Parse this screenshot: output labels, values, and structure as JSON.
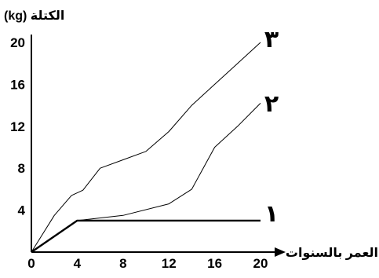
{
  "chart_data": {
    "type": "line",
    "title": "",
    "ylabel": "(kg) الكتلة",
    "xlabel": "العمر بالسنوات",
    "xlim": [
      0,
      20
    ],
    "ylim": [
      0,
      20
    ],
    "x_ticks": [
      0,
      4,
      8,
      12,
      16,
      20
    ],
    "y_ticks": [
      4,
      8,
      12,
      16,
      20
    ],
    "grid": false,
    "legend": "none",
    "series": [
      {
        "name": "١",
        "points": [
          [
            0,
            0
          ],
          [
            4,
            3
          ],
          [
            20,
            3
          ]
        ]
      },
      {
        "name": "٢",
        "points": [
          [
            0,
            0
          ],
          [
            4,
            3
          ],
          [
            8,
            3.5
          ],
          [
            12,
            4.6
          ],
          [
            14,
            6
          ],
          [
            16,
            10
          ],
          [
            18,
            12
          ],
          [
            20,
            14.2
          ]
        ]
      },
      {
        "name": "٣",
        "points": [
          [
            0,
            0
          ],
          [
            2,
            3.5
          ],
          [
            3.5,
            5.4
          ],
          [
            4.5,
            5.9
          ],
          [
            6,
            8
          ],
          [
            8,
            8.8
          ],
          [
            10,
            9.6
          ],
          [
            12,
            11.5
          ],
          [
            14,
            14
          ],
          [
            16,
            16
          ],
          [
            18,
            18
          ],
          [
            20,
            20
          ]
        ]
      }
    ]
  }
}
